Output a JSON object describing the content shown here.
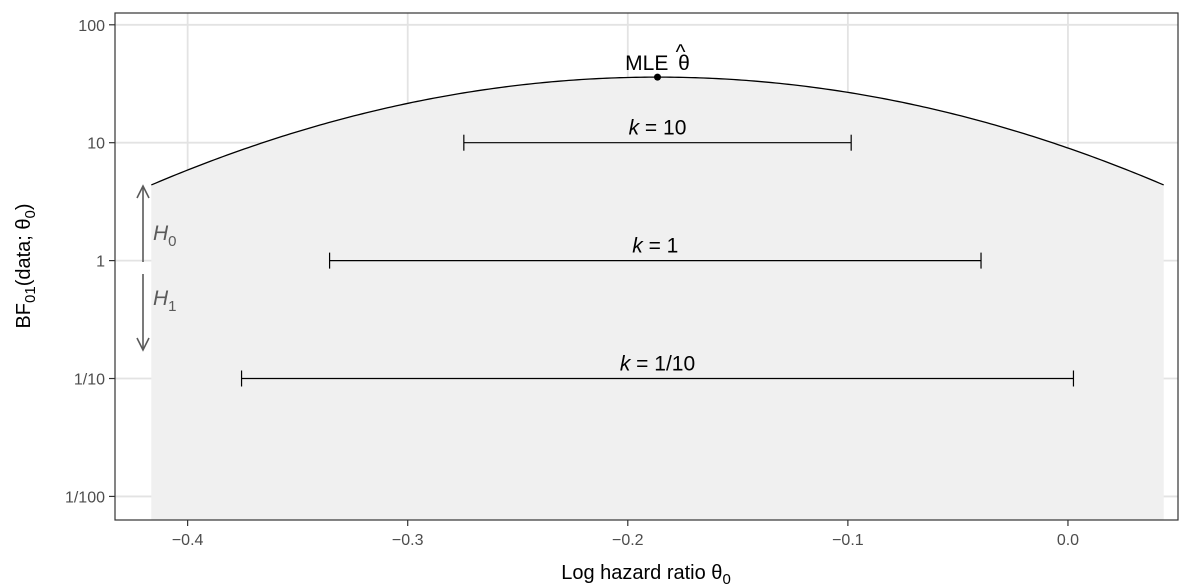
{
  "chart_data": {
    "type": "line",
    "title": "",
    "xlabel": "Log hazard ratio θ",
    "xlabel_sub": "0",
    "ylabel_prefix": "BF",
    "ylabel_sub": "01",
    "ylabel_mid": "(data; θ",
    "ylabel_sub2": "0",
    "ylabel_suffix": ")",
    "xlim": [
      -0.433,
      0.05
    ],
    "ylim_log10": [
      -2.2,
      2.1
    ],
    "y_scale": "log10",
    "grid": true,
    "x_ticks": [
      {
        "value": -0.4,
        "label": "−0.4"
      },
      {
        "value": -0.3,
        "label": "−0.3"
      },
      {
        "value": -0.2,
        "label": "−0.2"
      },
      {
        "value": -0.1,
        "label": "−0.1"
      },
      {
        "value": 0.0,
        "label": "0.0"
      }
    ],
    "y_ticks": [
      {
        "value": 100,
        "label": "100"
      },
      {
        "value": 10,
        "label": "10"
      },
      {
        "value": 1,
        "label": "1"
      },
      {
        "value": 0.1,
        "label": "1/10"
      },
      {
        "value": 0.01,
        "label": "1/100"
      }
    ],
    "curve": {
      "mle": -0.1865,
      "max_bf": 36,
      "half_width_at_bf1": 0.3,
      "x_range": [
        -0.4165,
        0.0435
      ],
      "fill": "#f0f0f0"
    },
    "mle_label": "MLE",
    "mle_symbol": "θ",
    "mle_hat": "^",
    "support_intervals": [
      {
        "k": 10,
        "bf": 10,
        "lower": -0.2745,
        "upper": -0.0985,
        "label_k": "k",
        "label_rest": " = 10"
      },
      {
        "k": 1,
        "bf": 1,
        "lower": -0.3355,
        "upper": -0.0395,
        "label_k": "k",
        "label_rest": " = 1"
      },
      {
        "k": 0.1,
        "bf": 0.1,
        "lower": -0.3755,
        "upper": 0.0025,
        "label_k": "k",
        "label_rest": " = 1/10"
      }
    ],
    "hypothesis_labels": {
      "h0": "H",
      "h0_sub": "0",
      "h1": "H",
      "h1_sub": "1",
      "color": "#5a5a5a"
    }
  }
}
